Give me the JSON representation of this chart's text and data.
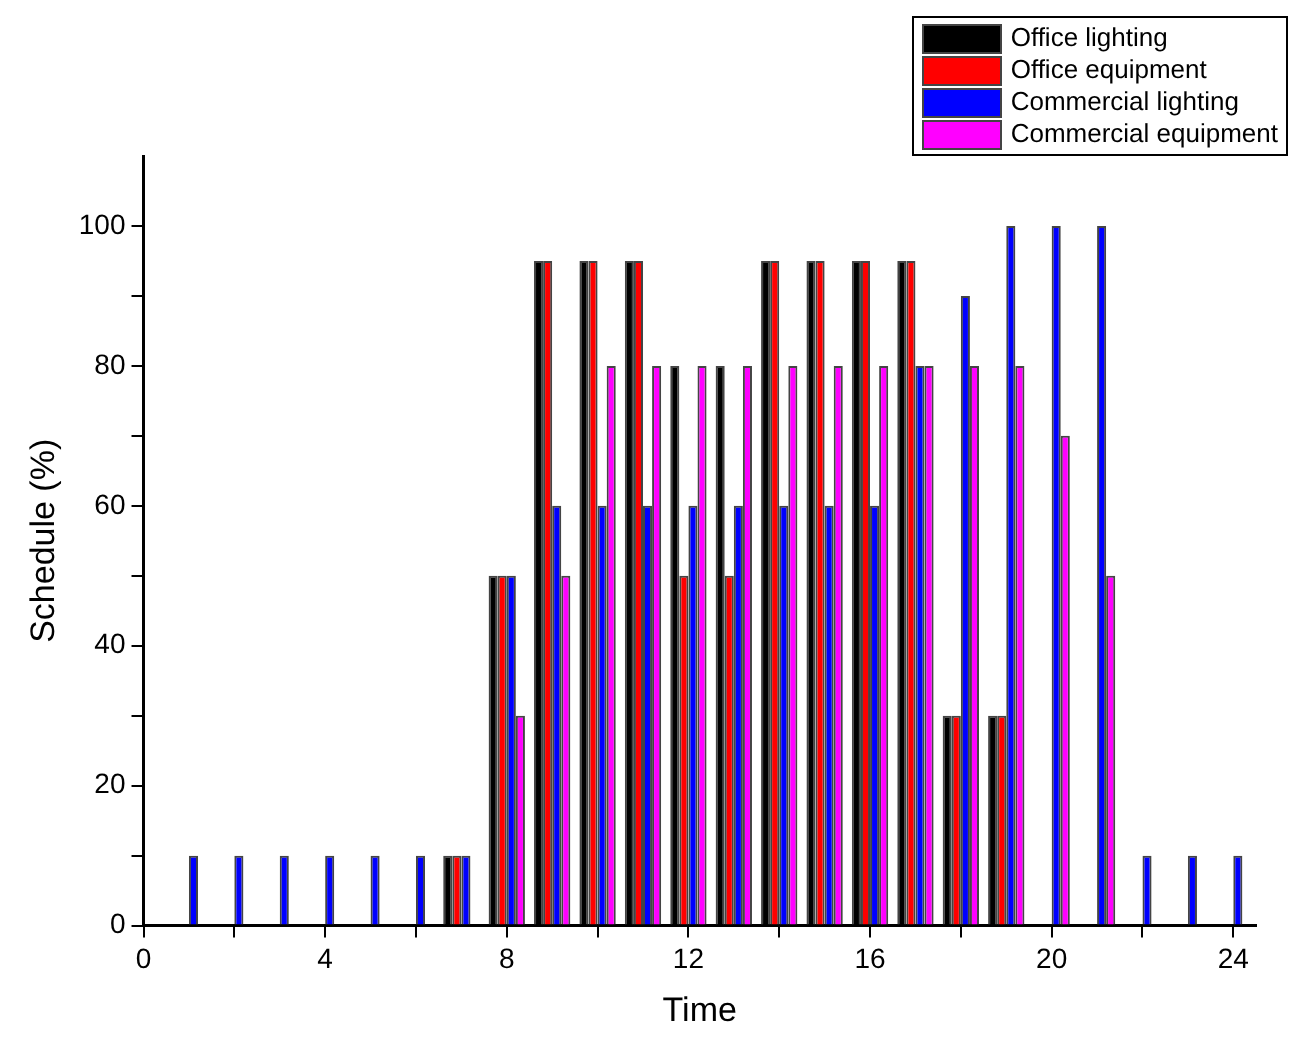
{
  "chart_data": {
    "type": "bar",
    "xlabel": "Time",
    "ylabel": "Schedule (%)",
    "x": [
      1,
      2,
      3,
      4,
      5,
      6,
      7,
      8,
      9,
      10,
      11,
      12,
      13,
      14,
      15,
      16,
      17,
      18,
      19,
      20,
      21,
      22,
      23,
      24
    ],
    "series": [
      {
        "name": "Office lighting",
        "color": "#000000",
        "values": [
          0,
          0,
          0,
          0,
          0,
          0,
          10,
          50,
          95,
          95,
          95,
          80,
          80,
          95,
          95,
          95,
          95,
          30,
          30,
          0,
          0,
          0,
          0,
          0
        ]
      },
      {
        "name": "Office equipment",
        "color": "#ff0000",
        "values": [
          0,
          0,
          0,
          0,
          0,
          0,
          10,
          50,
          95,
          95,
          95,
          50,
          50,
          95,
          95,
          95,
          95,
          30,
          30,
          0,
          0,
          0,
          0,
          0
        ]
      },
      {
        "name": "Commercial lighting",
        "color": "#0000ff",
        "values": [
          10,
          10,
          10,
          10,
          10,
          10,
          10,
          50,
          60,
          60,
          60,
          60,
          60,
          60,
          60,
          60,
          80,
          90,
          100,
          100,
          100,
          10,
          10,
          10
        ]
      },
      {
        "name": "Commercial equipment",
        "color": "#ff00ff",
        "values": [
          0,
          0,
          0,
          0,
          0,
          0,
          0,
          30,
          50,
          80,
          80,
          80,
          80,
          80,
          80,
          80,
          80,
          80,
          80,
          70,
          50,
          0,
          0,
          0
        ]
      }
    ],
    "xlim": [
      0,
      24.5
    ],
    "xticks": [
      0,
      {
        "value": 2,
        "label": null
      },
      4,
      {
        "value": 6,
        "label": null
      },
      8,
      {
        "value": 10,
        "label": null
      },
      12,
      {
        "value": 14,
        "label": null
      },
      16,
      {
        "value": 18,
        "label": null
      },
      20,
      {
        "value": 22,
        "label": null
      },
      24
    ],
    "ylim": [
      0,
      110
    ],
    "yticks": [
      0,
      {
        "value": 10,
        "label": null
      },
      20,
      {
        "value": 30,
        "label": null
      },
      40,
      {
        "value": 50,
        "label": null
      },
      60,
      {
        "value": 70,
        "label": null
      },
      80,
      {
        "value": 90,
        "label": null
      },
      100
    ],
    "grid": false,
    "legend": "top right"
  }
}
